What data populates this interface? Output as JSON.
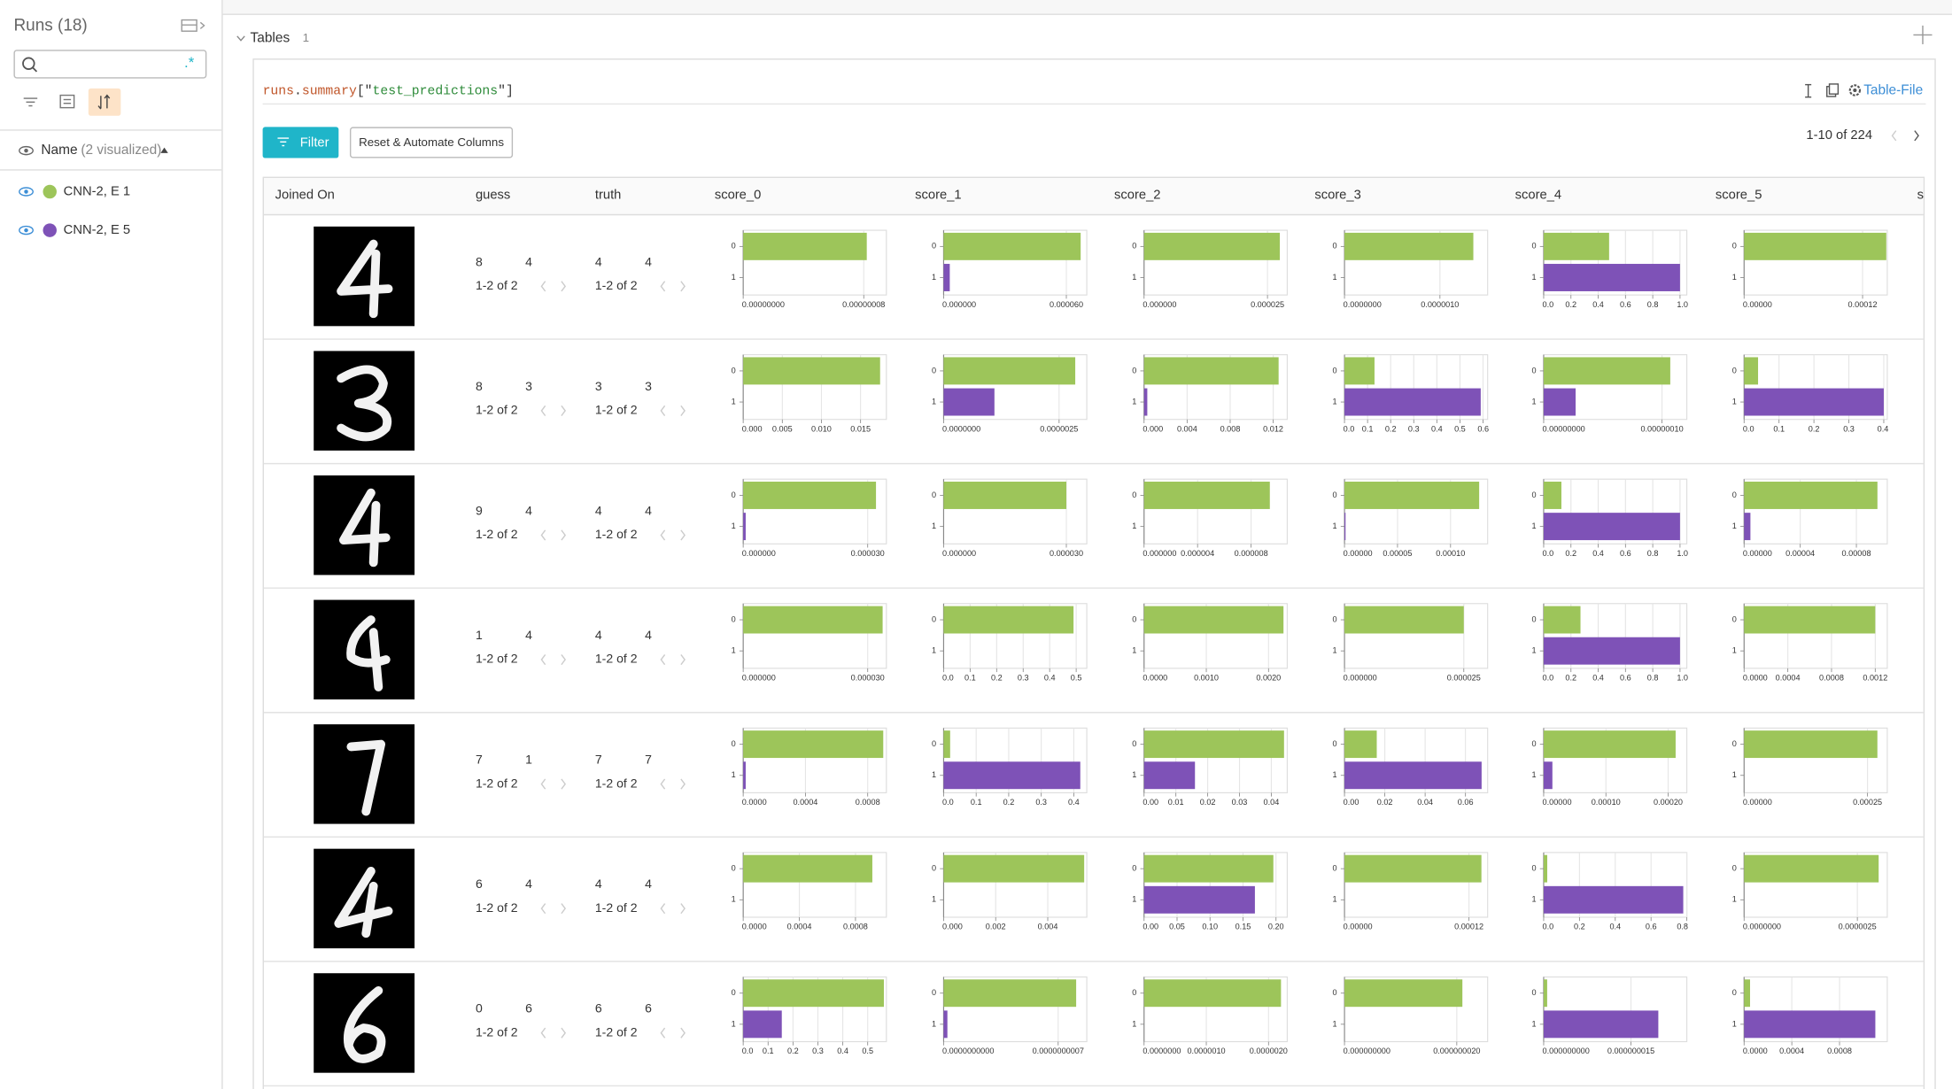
{
  "sidebar": {
    "title": "Runs (18)",
    "regex_toggle": ".*",
    "name_header": "Name",
    "visualized": "(2 visualized)",
    "runs": [
      {
        "name": "CNN-2, E 1",
        "color": "#9dc55a"
      },
      {
        "name": "CNN-2, E 5",
        "color": "#7e52b7"
      }
    ]
  },
  "section": {
    "title": "Tables",
    "count": 1
  },
  "panel": {
    "query_parts": [
      "runs",
      ".",
      "summary",
      "[\"",
      "test_predictions",
      "\"]"
    ],
    "table_file": "Table-File",
    "filter_button": "Filter",
    "reset_button": "Reset & Automate Columns",
    "pagination": "1-10 of 224"
  },
  "table": {
    "columns": [
      "Joined On",
      "guess",
      "truth",
      "score_0",
      "score_1",
      "score_2",
      "score_3",
      "score_4",
      "score_5",
      "s"
    ],
    "score_categories": [
      "0",
      "1"
    ],
    "rows": [
      {
        "guess": [
          8,
          4
        ],
        "guess_pager": "1-2 of 2",
        "truth": [
          4,
          4
        ],
        "truth_pager": "1-2 of 2",
        "scores": [
          {
            "values": [
              8.2e-08,
              0
            ],
            "xlim": [
              0,
              9.5e-08
            ],
            "xticks": [
              {
                "value": 0,
                "label": "0.00000000"
              },
              {
                "value": 8e-08,
                "label": "0.00000008"
              }
            ]
          },
          {
            "values": [
              6.7e-05,
              3e-06
            ],
            "xlim": [
              0,
              7e-05
            ],
            "xticks": [
              {
                "value": 0,
                "label": "0.000000"
              },
              {
                "value": 6e-05,
                "label": "0.000060"
              }
            ]
          },
          {
            "values": [
              2.75e-05,
              0
            ],
            "xlim": [
              0,
              2.9e-05
            ],
            "xticks": [
              {
                "value": 0,
                "label": "0.000000"
              },
              2.5e-05
            ]
          },
          {
            "values": [
              1.35e-06,
              0
            ],
            "xlim": [
              0,
              1.5e-06
            ],
            "xticks": [
              {
                "value": 0,
                "label": "0.0000000"
              },
              {
                "value": 1e-06,
                "label": "0.0000010"
              }
            ]
          },
          {
            "values": [
              0.48,
              1.0
            ],
            "xlim": [
              0,
              1.05
            ],
            "xticks": [
              {
                "value": 0,
                "label": "0.0"
              },
              0.2,
              0.4,
              0.6,
              0.8,
              {
                "value": 1,
                "label": "1.0"
              }
            ]
          },
          {
            "values": [
              0.000144,
              0
            ],
            "xlim": [
              0,
              0.000145
            ],
            "xticks": [
              {
                "value": 0,
                "label": "0.00000"
              },
              0.00012
            ]
          }
        ]
      },
      {
        "guess": [
          8,
          3
        ],
        "guess_pager": "1-2 of 2",
        "truth": [
          3,
          3
        ],
        "truth_pager": "1-2 of 2",
        "scores": [
          {
            "values": [
              0.0175,
              0
            ],
            "xlim": [
              0,
              0.0183
            ],
            "xticks": [
              {
                "value": 0,
                "label": "0.000"
              },
              0.005,
              {
                "value": 0.01,
                "label": "0.010"
              },
              0.015
            ]
          },
          {
            "values": [
              2.85e-06,
              1.1e-06
            ],
            "xlim": [
              0,
              3.1e-06
            ],
            "xticks": [
              {
                "value": 0,
                "label": "0.0000000"
              },
              2.5e-06
            ]
          },
          {
            "values": [
              0.0125,
              0.0003
            ],
            "xlim": [
              0,
              0.0133
            ],
            "xticks": [
              {
                "value": 0,
                "label": "0.000"
              },
              0.004,
              0.008,
              0.012
            ]
          },
          {
            "values": [
              0.13,
              0.59
            ],
            "xlim": [
              0,
              0.62
            ],
            "xticks": [
              {
                "value": 0,
                "label": "0.0"
              },
              0.1,
              0.2,
              0.3,
              0.4,
              0.5,
              0.6
            ]
          },
          {
            "values": [
              1.07e-07,
              2.7e-08
            ],
            "xlim": [
              0,
              1.21e-07
            ],
            "xticks": [
              {
                "value": 0,
                "label": "0.00000000"
              },
              {
                "value": 1e-07,
                "label": "0.00000010"
              }
            ]
          },
          {
            "values": [
              0.04,
              0.4
            ],
            "xlim": [
              0,
              0.41
            ],
            "xticks": [
              {
                "value": 0,
                "label": "0.0"
              },
              0.1,
              0.2,
              0.3,
              0.4
            ]
          }
        ]
      },
      {
        "guess": [
          9,
          4
        ],
        "guess_pager": "1-2 of 2",
        "truth": [
          4,
          4
        ],
        "truth_pager": "1-2 of 2",
        "scores": [
          {
            "values": [
              3.2e-05,
              6e-07
            ],
            "xlim": [
              0,
              3.45e-05
            ],
            "xticks": [
              {
                "value": 0,
                "label": "0.000000"
              },
              {
                "value": 3e-05,
                "label": "0.000030"
              }
            ]
          },
          {
            "values": [
              3e-05,
              0
            ],
            "xlim": [
              0,
              3.5e-05
            ],
            "xticks": [
              {
                "value": 0,
                "label": "0.000000"
              },
              {
                "value": 3e-05,
                "label": "0.000030"
              }
            ]
          },
          {
            "values": [
              9.4e-06,
              0
            ],
            "xlim": [
              0,
              1.07e-05
            ],
            "xticks": [
              {
                "value": 0,
                "label": "0.000000"
              },
              4e-06,
              8e-06
            ]
          },
          {
            "values": [
              0.000127,
              1e-06
            ],
            "xlim": [
              0,
              0.000135
            ],
            "xticks": [
              {
                "value": 0,
                "label": "0.00000"
              },
              5e-05,
              {
                "value": 0.0001,
                "label": "0.00010"
              }
            ]
          },
          {
            "values": [
              0.13,
              1.0
            ],
            "xlim": [
              0,
              1.05
            ],
            "xticks": [
              {
                "value": 0,
                "label": "0.0"
              },
              0.2,
              0.4,
              0.6,
              0.8,
              {
                "value": 1,
                "label": "1.0"
              }
            ]
          },
          {
            "values": [
              9.5e-05,
              4.5e-06
            ],
            "xlim": [
              0,
              0.000102
            ],
            "xticks": [
              {
                "value": 0,
                "label": "0.00000"
              },
              4e-05,
              8e-05
            ]
          }
        ]
      },
      {
        "guess": [
          1,
          4
        ],
        "guess_pager": "1-2 of 2",
        "truth": [
          4,
          4
        ],
        "truth_pager": "1-2 of 2",
        "scores": [
          {
            "values": [
              3.36e-05,
              0
            ],
            "xlim": [
              0,
              3.45e-05
            ],
            "xticks": [
              {
                "value": 0,
                "label": "0.000000"
              },
              {
                "value": 3e-05,
                "label": "0.000030"
              }
            ]
          },
          {
            "values": [
              0.49,
              0
            ],
            "xlim": [
              0,
              0.54
            ],
            "xticks": [
              {
                "value": 0,
                "label": "0.0"
              },
              0.1,
              0.2,
              0.3,
              0.4,
              0.5
            ]
          },
          {
            "values": [
              0.00224,
              0
            ],
            "xlim": [
              0,
              0.0023
            ],
            "xticks": [
              {
                "value": 0,
                "label": "0.0000"
              },
              {
                "value": 0.001,
                "label": "0.0010"
              },
              {
                "value": 0.002,
                "label": "0.0020"
              }
            ]
          },
          {
            "values": [
              2.5e-05,
              0
            ],
            "xlim": [
              0,
              3e-05
            ],
            "xticks": [
              {
                "value": 0,
                "label": "0.000000"
              },
              2.5e-05
            ]
          },
          {
            "values": [
              0.27,
              1.0
            ],
            "xlim": [
              0,
              1.05
            ],
            "xticks": [
              {
                "value": 0,
                "label": "0.0"
              },
              0.2,
              0.4,
              0.6,
              0.8,
              {
                "value": 1,
                "label": "1.0"
              }
            ]
          },
          {
            "values": [
              0.0012,
              0
            ],
            "xlim": [
              0,
              0.00131
            ],
            "xticks": [
              {
                "value": 0,
                "label": "0.0000"
              },
              0.0004,
              0.0008,
              0.0012
            ]
          }
        ]
      },
      {
        "guess": [
          7,
          1
        ],
        "guess_pager": "1-2 of 2",
        "truth": [
          7,
          7
        ],
        "truth_pager": "1-2 of 2",
        "scores": [
          {
            "values": [
              0.0009,
              1.6e-05
            ],
            "xlim": [
              0,
              0.00092
            ],
            "xticks": [
              {
                "value": 0,
                "label": "0.0000"
              },
              0.0004,
              0.0008
            ]
          },
          {
            "values": [
              0.02,
              0.42
            ],
            "xlim": [
              0,
              0.44
            ],
            "xticks": [
              {
                "value": 0,
                "label": "0.0"
              },
              0.1,
              0.2,
              0.3,
              0.4
            ]
          },
          {
            "values": [
              0.044,
              0.016
            ],
            "xlim": [
              0,
              0.045
            ],
            "xticks": [
              {
                "value": 0,
                "label": "0.00"
              },
              0.01,
              0.02,
              0.03,
              0.04
            ]
          },
          {
            "values": [
              0.016,
              0.068
            ],
            "xlim": [
              0,
              0.071
            ],
            "xticks": [
              {
                "value": 0,
                "label": "0.00"
              },
              0.02,
              0.04,
              0.06
            ]
          },
          {
            "values": [
              0.000212,
              1.4e-05
            ],
            "xlim": [
              0,
              0.00023
            ],
            "xticks": [
              {
                "value": 0,
                "label": "0.00000"
              },
              {
                "value": 0.0001,
                "label": "0.00010"
              },
              {
                "value": 0.0002,
                "label": "0.00020"
              }
            ]
          },
          {
            "values": [
              0.00027,
              0
            ],
            "xlim": [
              0,
              0.00029
            ],
            "xticks": [
              {
                "value": 0,
                "label": "0.00000"
              },
              0.00025
            ]
          }
        ]
      },
      {
        "guess": [
          6,
          4
        ],
        "guess_pager": "1-2 of 2",
        "truth": [
          4,
          4
        ],
        "truth_pager": "1-2 of 2",
        "scores": [
          {
            "values": [
              0.00092,
              0
            ],
            "xlim": [
              0,
              0.00102
            ],
            "xticks": [
              {
                "value": 0,
                "label": "0.0000"
              },
              0.0004,
              0.0008
            ]
          },
          {
            "values": [
              0.0054,
              0
            ],
            "xlim": [
              0,
              0.0055
            ],
            "xticks": [
              {
                "value": 0,
                "label": "0.000"
              },
              0.002,
              0.004
            ]
          },
          {
            "values": [
              0.196,
              0.168
            ],
            "xlim": [
              0,
              0.217
            ],
            "xticks": [
              {
                "value": 0,
                "label": "0.00"
              },
              0.05,
              {
                "value": 0.1,
                "label": "0.10"
              },
              0.15,
              {
                "value": 0.2,
                "label": "0.20"
              }
            ]
          },
          {
            "values": [
              0.000132,
              0
            ],
            "xlim": [
              0,
              0.000138
            ],
            "xticks": [
              {
                "value": 0,
                "label": "0.00000"
              },
              0.00012
            ]
          },
          {
            "values": [
              0.02,
              0.78
            ],
            "xlim": [
              0,
              0.8
            ],
            "xticks": [
              {
                "value": 0,
                "label": "0.0"
              },
              0.2,
              0.4,
              0.6,
              0.8
            ]
          },
          {
            "values": [
              2.97e-06,
              0
            ],
            "xlim": [
              0,
              3.16e-06
            ],
            "xticks": [
              {
                "value": 0,
                "label": "0.0000000"
              },
              2.5e-06
            ]
          }
        ]
      },
      {
        "guess": [
          0,
          6
        ],
        "guess_pager": "1-2 of 2",
        "truth": [
          6,
          6
        ],
        "truth_pager": "1-2 of 2",
        "scores": [
          {
            "values": [
              0.565,
              0.155
            ],
            "xlim": [
              0,
              0.575
            ],
            "xticks": [
              {
                "value": 0,
                "label": "0.0"
              },
              0.1,
              0.2,
              0.3,
              0.4,
              0.5
            ]
          },
          {
            "values": [
              8.1e-10,
              2.3e-11
            ],
            "xlim": [
              0,
              8.75e-10
            ],
            "xticks": [
              {
                "value": 0,
                "label": "0.0000000000"
              },
              {
                "value": 7e-10,
                "label": "0.0000000007"
              }
            ]
          },
          {
            "values": [
              2.2e-06,
              0
            ],
            "xlim": [
              0,
              2.3e-06
            ],
            "xticks": [
              {
                "value": 0,
                "label": "0.0000000"
              },
              {
                "value": 1e-06,
                "label": "0.0000010"
              },
              {
                "value": 2e-06,
                "label": "0.0000020"
              }
            ]
          },
          {
            "values": [
              2.1e-08,
              0
            ],
            "xlim": [
              0,
              2.55e-08
            ],
            "xticks": [
              {
                "value": 0,
                "label": "0.000000000"
              },
              {
                "value": 2e-08,
                "label": "0.000000020"
              }
            ]
          },
          {
            "values": [
              6e-10,
              1.97e-08
            ],
            "xlim": [
              0,
              2.46e-08
            ],
            "xticks": [
              {
                "value": 0,
                "label": "0.000000000"
              },
              {
                "value": 1.5e-08,
                "label": "0.000000015"
              }
            ]
          },
          {
            "values": [
              5e-05,
              0.0011
            ],
            "xlim": [
              0,
              0.0012
            ],
            "xticks": [
              {
                "value": 0,
                "label": "0.0000"
              },
              0.0004,
              0.0008
            ]
          }
        ]
      }
    ]
  }
}
